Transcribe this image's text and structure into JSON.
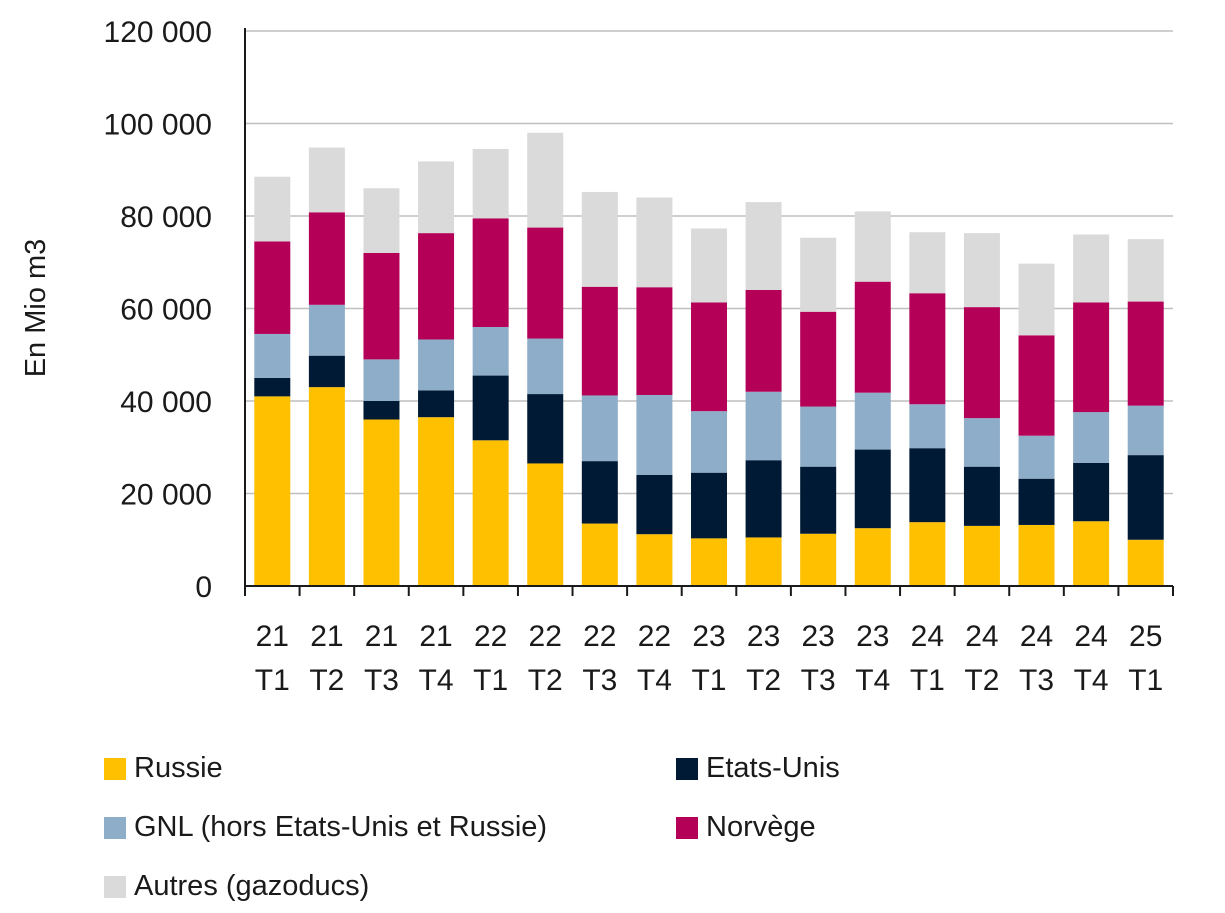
{
  "chart_data": {
    "type": "bar",
    "stacked": true,
    "ylabel": "En Mio m3",
    "xlabel": "",
    "ylim": [
      0,
      120000
    ],
    "yticks": [
      0,
      20000,
      40000,
      60000,
      80000,
      100000,
      120000
    ],
    "ytick_labels": [
      "0",
      "20 000",
      "40 000",
      "60 000",
      "80 000",
      "100 000",
      "120 000"
    ],
    "grid": true,
    "legend_position": "bottom",
    "categories": [
      [
        "21",
        "T1"
      ],
      [
        "21",
        "T2"
      ],
      [
        "21",
        "T3"
      ],
      [
        "21",
        "T4"
      ],
      [
        "22",
        "T1"
      ],
      [
        "22",
        "T2"
      ],
      [
        "22",
        "T3"
      ],
      [
        "22",
        "T4"
      ],
      [
        "23",
        "T1"
      ],
      [
        "23",
        "T2"
      ],
      [
        "23",
        "T3"
      ],
      [
        "23",
        "T4"
      ],
      [
        "24",
        "T1"
      ],
      [
        "24",
        "T2"
      ],
      [
        "24",
        "T3"
      ],
      [
        "24",
        "T4"
      ],
      [
        "25",
        "T1"
      ]
    ],
    "series": [
      {
        "name": "Russie",
        "color": "#FFC000",
        "values": [
          41000,
          43000,
          36000,
          36500,
          31500,
          26500,
          13500,
          11200,
          10300,
          10500,
          11300,
          12500,
          13800,
          13000,
          13200,
          14000,
          10000
        ]
      },
      {
        "name": "Etats-Unis",
        "color": "#001A35",
        "values": [
          4000,
          6800,
          4000,
          5800,
          14000,
          15000,
          13500,
          12800,
          14200,
          16700,
          14500,
          17000,
          16000,
          12800,
          10000,
          12600,
          18300
        ]
      },
      {
        "name": "GNL (hors Etats-Unis et Russie)",
        "color": "#8EADC8",
        "values": [
          9500,
          11000,
          9000,
          11000,
          10500,
          12000,
          14200,
          17300,
          13300,
          14800,
          13000,
          12300,
          9500,
          10500,
          9300,
          11000,
          10700
        ]
      },
      {
        "name": "Norvège",
        "color": "#B40057",
        "values": [
          20000,
          20000,
          23000,
          23000,
          23500,
          24000,
          23500,
          23300,
          23500,
          22000,
          20500,
          24000,
          24000,
          24000,
          21700,
          23700,
          22500
        ]
      },
      {
        "name": "Autres (gazoducs)",
        "color": "#DADADA",
        "values": [
          14000,
          14000,
          14000,
          15500,
          15000,
          20500,
          20500,
          19400,
          16000,
          19000,
          16000,
          15200,
          13200,
          16000,
          15500,
          14700,
          13500
        ]
      }
    ]
  }
}
